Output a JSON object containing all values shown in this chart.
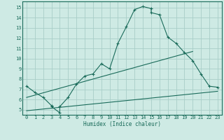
{
  "xlabel": "Humidex (Indice chaleur)",
  "ylabel": "",
  "xlim": [
    -0.5,
    23.5
  ],
  "ylim": [
    4.5,
    15.6
  ],
  "xticks": [
    0,
    1,
    2,
    3,
    4,
    5,
    6,
    7,
    8,
    9,
    10,
    11,
    12,
    13,
    14,
    15,
    16,
    17,
    18,
    19,
    20,
    21,
    22,
    23
  ],
  "yticks": [
    5,
    6,
    7,
    8,
    9,
    10,
    11,
    12,
    13,
    14,
    15
  ],
  "bg_color": "#ceeae4",
  "grid_color": "#a8cec8",
  "line_color": "#1a6b5a",
  "main_x": [
    0,
    1,
    2,
    3,
    3,
    4,
    4,
    5,
    6,
    7,
    8,
    9,
    10,
    11,
    12,
    13,
    14,
    15,
    15,
    16,
    17,
    18,
    19,
    20,
    21,
    22,
    23
  ],
  "main_y": [
    7.3,
    6.7,
    6.2,
    5.4,
    5.3,
    4.7,
    5.3,
    6.2,
    7.5,
    8.3,
    8.5,
    9.5,
    9.0,
    11.5,
    13.1,
    14.8,
    15.1,
    14.9,
    14.5,
    14.3,
    12.1,
    11.5,
    10.6,
    9.8,
    8.5,
    7.3,
    7.2
  ],
  "line2_x": [
    0,
    20
  ],
  "line2_y": [
    6.2,
    10.7
  ],
  "line3_x": [
    0,
    23
  ],
  "line3_y": [
    4.9,
    6.8
  ]
}
